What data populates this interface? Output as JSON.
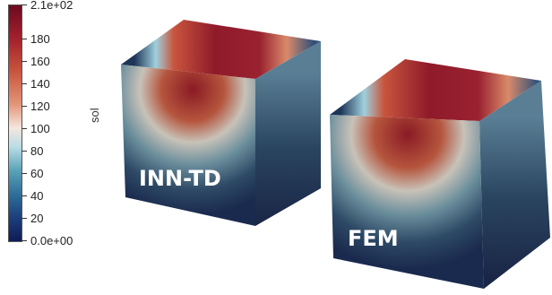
{
  "colorbar": {
    "title": "sol",
    "max_label": "2.1e+02",
    "min_label": "0.0e+00",
    "ticks": [
      {
        "label": "2.1e+02",
        "value": 210
      },
      {
        "label": "180",
        "value": 180
      },
      {
        "label": "160",
        "value": 160
      },
      {
        "label": "140",
        "value": 140
      },
      {
        "label": "120",
        "value": 120
      },
      {
        "label": "100",
        "value": 100
      },
      {
        "label": "80",
        "value": 80
      },
      {
        "label": "60",
        "value": 60
      },
      {
        "label": "40",
        "value": 40
      },
      {
        "label": "20",
        "value": 20
      },
      {
        "label": "0.0e+00",
        "value": 0
      }
    ],
    "colormap": [
      "#0e1c57",
      "#1d3f7d",
      "#2f6f9a",
      "#5aa3b8",
      "#b9dde6",
      "#f5e6dd",
      "#e3967a",
      "#c8553d",
      "#a3202d",
      "#6b0a1f"
    ]
  },
  "cubes": {
    "left": {
      "label": "INN-TD"
    },
    "right": {
      "label": "FEM"
    }
  }
}
